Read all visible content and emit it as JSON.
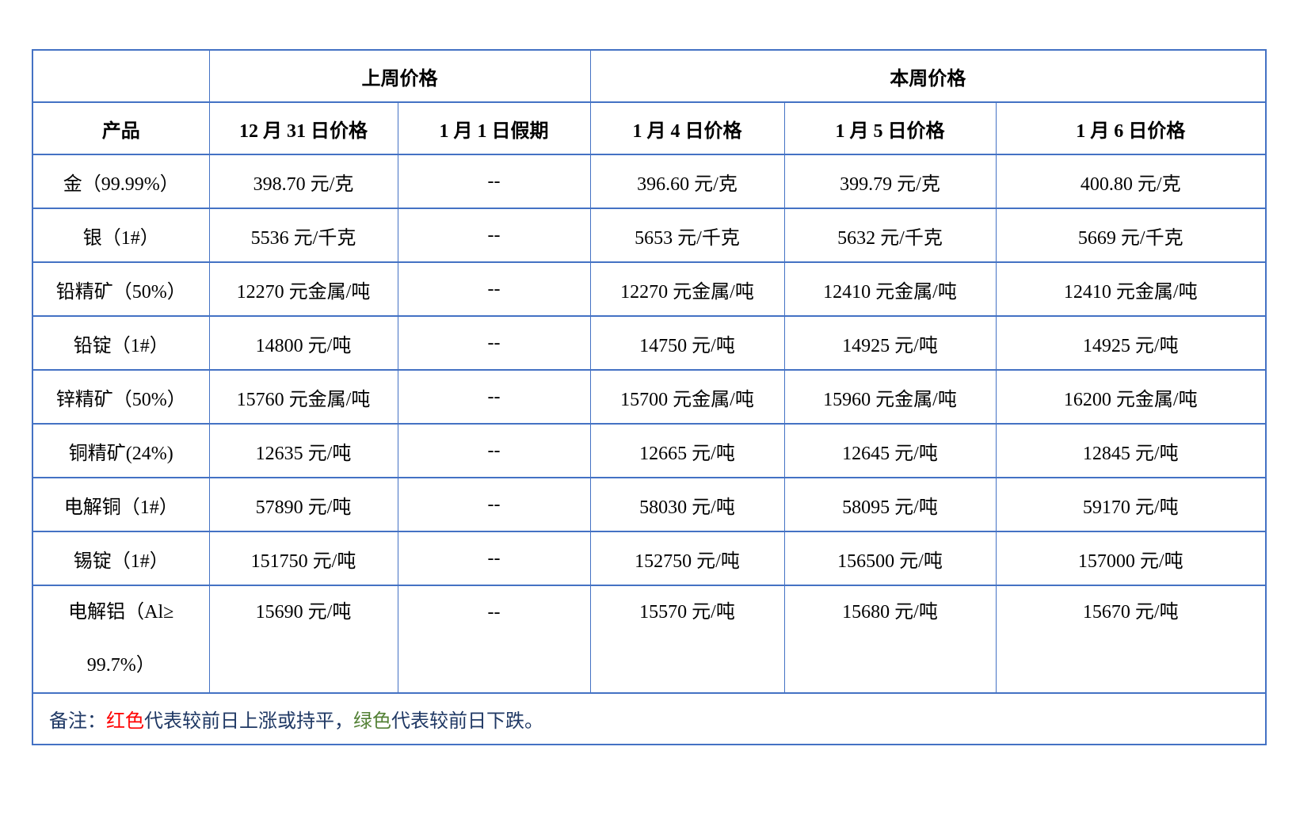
{
  "table": {
    "header": {
      "corner": "",
      "last_week": "上周价格",
      "this_week": "本周价格",
      "columns": [
        "产品",
        "12 月 31 日价格",
        "1 月 1 日假期",
        "1 月 4 日价格",
        "1 月 5 日价格",
        "1 月 6 日价格"
      ]
    },
    "rows": [
      {
        "product": "金（99.99%）",
        "cells": [
          {
            "text": "398.70 元/克",
            "color": "red"
          },
          {
            "text": "--",
            "color": "red"
          },
          {
            "text": "396.60 元/克",
            "color": "green"
          },
          {
            "text": "399.79 元/克",
            "color": "red"
          },
          {
            "text": "400.80 元/克",
            "color": "red"
          }
        ]
      },
      {
        "product": "银（1#）",
        "cells": [
          {
            "text": "5536 元/千克",
            "color": "red"
          },
          {
            "text": "--",
            "color": "red"
          },
          {
            "text": "5653 元/千克",
            "color": "red"
          },
          {
            "text": "5632 元/千克",
            "color": "green"
          },
          {
            "text": "5669 元/千克",
            "color": "red"
          }
        ]
      },
      {
        "product": "铅精矿（50%）",
        "cells": [
          {
            "text": "12270 元金属/吨",
            "color": "red"
          },
          {
            "text": "--",
            "color": "red"
          },
          {
            "text": "12270 元金属/吨",
            "color": "red"
          },
          {
            "text": "12410 元金属/吨",
            "color": "red"
          },
          {
            "text": "12410 元金属/吨",
            "color": "red"
          }
        ]
      },
      {
        "product": "铅锭（1#）",
        "cells": [
          {
            "text": "14800 元/吨",
            "color": "red"
          },
          {
            "text": "--",
            "color": "red"
          },
          {
            "text": "14750 元/吨",
            "color": "green"
          },
          {
            "text": "14925 元/吨",
            "color": "red"
          },
          {
            "text": "14925 元/吨",
            "color": "red"
          }
        ]
      },
      {
        "product": "锌精矿（50%）",
        "cells": [
          {
            "text": "15760 元金属/吨",
            "color": "green"
          },
          {
            "text": "--",
            "color": "red"
          },
          {
            "text": "15700 元金属/吨",
            "color": "green"
          },
          {
            "text": "15960 元金属/吨",
            "color": "red"
          },
          {
            "text": "16200 元金属/吨",
            "color": "red"
          }
        ]
      },
      {
        "product": "铜精矿(24%)",
        "cells": [
          {
            "text": "12635 元/吨",
            "color": "green"
          },
          {
            "text": "--",
            "color": "red"
          },
          {
            "text": "12665 元/吨",
            "color": "red"
          },
          {
            "text": "12645 元/吨",
            "color": "green"
          },
          {
            "text": "12845 元/吨",
            "color": "red"
          }
        ]
      },
      {
        "product": "电解铜（1#）",
        "cells": [
          {
            "text": "57890 元/吨",
            "color": "green"
          },
          {
            "text": "--",
            "color": "red"
          },
          {
            "text": "58030 元/吨",
            "color": "red"
          },
          {
            "text": "58095 元/吨",
            "color": "red"
          },
          {
            "text": "59170 元/吨",
            "color": "red"
          }
        ]
      },
      {
        "product": "锡锭（1#）",
        "cells": [
          {
            "text": "151750 元/吨",
            "color": "green"
          },
          {
            "text": "--",
            "color": "red"
          },
          {
            "text": "152750 元/吨",
            "color": "red"
          },
          {
            "text": "156500 元/吨",
            "color": "red"
          },
          {
            "text": "157000 元/吨",
            "color": "red"
          }
        ]
      },
      {
        "product": "电解铝（Al≥",
        "product2": "99.7%）",
        "tall": true,
        "cells": [
          {
            "text": "15690 元/吨",
            "color": "green"
          },
          {
            "text": "--",
            "color": "red"
          },
          {
            "text": "15570 元/吨",
            "color": "green"
          },
          {
            "text": "15680 元/吨",
            "color": "red"
          },
          {
            "text": "15670 元/吨",
            "color": "green"
          }
        ]
      }
    ],
    "note": {
      "segments": [
        {
          "text": "备注：",
          "color": "navy"
        },
        {
          "text": "红色",
          "color": "red"
        },
        {
          "text": "代表较前日上涨或持平，",
          "color": "navy"
        },
        {
          "text": "绿色",
          "color": "green"
        },
        {
          "text": "代表较前日下跌。",
          "color": "navy"
        }
      ]
    }
  },
  "colors": {
    "red": "#FF0000",
    "green": "#538135",
    "note_text": "#1F3864",
    "border": "#4472C4",
    "header_text": "#000000"
  }
}
